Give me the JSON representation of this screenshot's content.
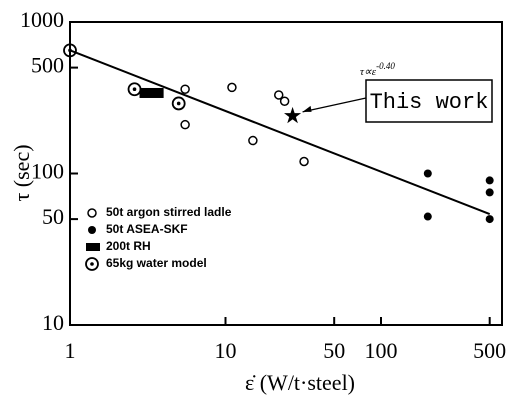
{
  "chart_data": {
    "type": "scatter",
    "x_label": "ε̇  (W/t·steel)",
    "y_label": "τ (sec)",
    "log_x": true,
    "log_y": true,
    "xlim": [
      1,
      600
    ],
    "ylim": [
      10,
      1000
    ],
    "xticks": [
      1,
      10,
      50,
      100,
      500
    ],
    "yticks": [
      10,
      50,
      100,
      500,
      1000
    ],
    "series": [
      {
        "name": "50t argon stirred ladle",
        "marker": "open-circle",
        "color": "#000",
        "x": [
          5.5,
          5.5,
          11,
          15,
          22,
          24,
          32
        ],
        "values": [
          360,
          210,
          370,
          165,
          330,
          300,
          120
        ]
      },
      {
        "name": "50t ASEA-SKF",
        "marker": "filled-circle",
        "color": "#000",
        "x": [
          200,
          200,
          500,
          500,
          500
        ],
        "values": [
          100,
          52,
          90,
          75,
          50
        ]
      },
      {
        "name": "200t RH",
        "marker": "bar",
        "color": "#000",
        "x": [
          [
            2.8,
            4
          ]
        ],
        "values": [
          340
        ]
      },
      {
        "name": "65kg water model",
        "marker": "double-circle",
        "color": "#000",
        "x": [
          1,
          2.6,
          5
        ],
        "values": [
          650,
          360,
          290
        ]
      }
    ],
    "this_work": {
      "label": "This work",
      "x": 27,
      "value": 240
    },
    "fit_line": {
      "x": [
        1,
        500
      ],
      "values": [
        650,
        54
      ]
    },
    "annotation": {
      "base": "τ∝ε",
      "exponent": "-0.40"
    }
  }
}
